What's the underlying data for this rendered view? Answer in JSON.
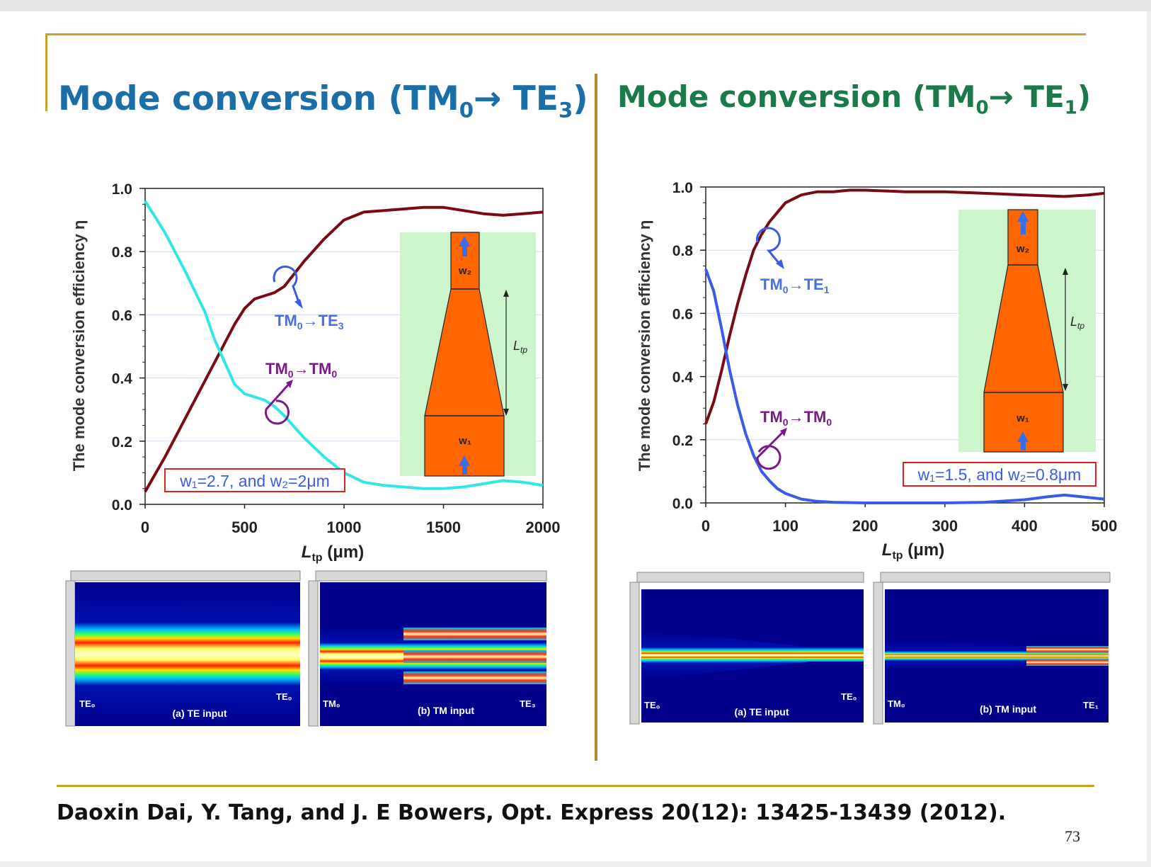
{
  "slide": {
    "left_title": {
      "main": "Mode conversion (TM",
      "sub1": "0",
      "arrow": "→ TE",
      "sub2": "3",
      "close": ")"
    },
    "right_title": {
      "main": "Mode conversion (TM",
      "sub1": "0",
      "arrow": "→ TE",
      "sub2": "1",
      "close": ")"
    },
    "citation": "Daoxin Dai, Y. Tang, and J. E Bowers, Opt. Express 20(12): 13425-13439 (2012).",
    "page_number": "73",
    "colors": {
      "left_title": "#1a6fa8",
      "right_title": "#1a7a4a",
      "rule": "#c8a227",
      "divider": "#b08a2a"
    }
  },
  "chart_data": [
    {
      "type": "line",
      "ylabel": "The mode conversion efficiency η",
      "xlabel_main": "L",
      "xlabel_sub": "tp",
      "xlabel_unit": " (μm)",
      "xlim": [
        0,
        2000
      ],
      "ylim": [
        0,
        1.0
      ],
      "xticks": [
        0,
        500,
        1000,
        1500,
        2000
      ],
      "yticks": [
        "0.0",
        "0.2",
        "0.4",
        "0.6",
        "0.8",
        "1.0"
      ],
      "grid": true,
      "annotation": "w₁=2.7, and w₂=2μm",
      "series": [
        {
          "name": "TM₀→TE₃",
          "color": "#7a0a14",
          "x": [
            0,
            100,
            200,
            300,
            400,
            450,
            500,
            550,
            600,
            650,
            700,
            750,
            800,
            900,
            1000,
            1100,
            1200,
            1300,
            1400,
            1500,
            1600,
            1700,
            1800,
            1900,
            2000
          ],
          "y": [
            0.04,
            0.15,
            0.27,
            0.39,
            0.51,
            0.57,
            0.62,
            0.65,
            0.66,
            0.67,
            0.69,
            0.73,
            0.77,
            0.84,
            0.9,
            0.925,
            0.93,
            0.935,
            0.94,
            0.94,
            0.93,
            0.92,
            0.915,
            0.92,
            0.925
          ]
        },
        {
          "name": "TM₀→TM₀",
          "color": "#33e6e6",
          "x": [
            0,
            50,
            100,
            200,
            300,
            350,
            400,
            450,
            500,
            550,
            600,
            650,
            700,
            800,
            900,
            1000,
            1100,
            1200,
            1300,
            1400,
            1500,
            1600,
            1700,
            1800,
            1900,
            2000
          ],
          "y": [
            0.96,
            0.91,
            0.86,
            0.74,
            0.61,
            0.52,
            0.45,
            0.38,
            0.35,
            0.34,
            0.33,
            0.31,
            0.28,
            0.21,
            0.15,
            0.1,
            0.07,
            0.06,
            0.055,
            0.05,
            0.05,
            0.055,
            0.065,
            0.075,
            0.07,
            0.06
          ]
        }
      ],
      "labels": [
        {
          "text_main": "TM",
          "s1": "0",
          "mid": "→TE",
          "s2": "3"
        },
        {
          "text_main": "TM",
          "s1": "0",
          "mid": "→TM",
          "s2": "0"
        }
      ],
      "inset": {
        "w1": "w₁",
        "w2": "w₂",
        "ltp": "L",
        "ltp_sub": "tp"
      }
    },
    {
      "type": "line",
      "ylabel": "The mode conversion efficiency η",
      "xlabel_main": "L",
      "xlabel_sub": "tp",
      "xlabel_unit": " (μm)",
      "xlim": [
        0,
        500
      ],
      "ylim": [
        0,
        1.0
      ],
      "xticks": [
        0,
        100,
        200,
        300,
        400,
        500
      ],
      "yticks": [
        "0.0",
        "0.2",
        "0.4",
        "0.6",
        "0.8",
        "1.0"
      ],
      "grid": true,
      "annotation": "w₁=1.5, and w₂=0.8μm",
      "series": [
        {
          "name": "TM₀→TE₁",
          "color": "#7a0a14",
          "x": [
            0,
            10,
            20,
            30,
            40,
            50,
            60,
            70,
            80,
            90,
            100,
            120,
            140,
            160,
            180,
            200,
            250,
            300,
            350,
            400,
            450,
            480,
            500
          ],
          "y": [
            0.25,
            0.32,
            0.42,
            0.53,
            0.63,
            0.72,
            0.8,
            0.85,
            0.89,
            0.92,
            0.95,
            0.975,
            0.985,
            0.985,
            0.99,
            0.99,
            0.985,
            0.985,
            0.98,
            0.975,
            0.97,
            0.975,
            0.98
          ]
        },
        {
          "name": "TM₀→TM₀",
          "color": "#3a5be8",
          "x": [
            0,
            10,
            20,
            30,
            40,
            50,
            60,
            70,
            80,
            90,
            100,
            120,
            140,
            160,
            200,
            250,
            300,
            350,
            400,
            430,
            450,
            470,
            500
          ],
          "y": [
            0.74,
            0.67,
            0.55,
            0.42,
            0.31,
            0.22,
            0.15,
            0.1,
            0.07,
            0.045,
            0.03,
            0.012,
            0.005,
            0.002,
            0.0,
            0.0,
            0.0,
            0.002,
            0.01,
            0.02,
            0.025,
            0.02,
            0.012
          ]
        }
      ],
      "labels": [
        {
          "text_main": "TM",
          "s1": "0",
          "mid": "→TE",
          "s2": "1"
        },
        {
          "text_main": "TM",
          "s1": "0",
          "mid": "→TM",
          "s2": "0"
        }
      ],
      "inset": {
        "w1": "w₁",
        "w2": "w₂",
        "ltp": "L",
        "ltp_sub": "tp"
      }
    }
  ],
  "field_panels": [
    {
      "in_label": "TE₀",
      "out_label": "TE₀",
      "caption": "(a) TE input"
    },
    {
      "in_label": "TM₀",
      "out_label": "TE₃",
      "caption": "(b) TM input"
    },
    {
      "in_label": "TE₀",
      "out_label": "TE₀",
      "caption": "(a) TE input"
    },
    {
      "in_label": "TM₀",
      "out_label": "TE₁",
      "caption": "(b) TM input"
    }
  ]
}
